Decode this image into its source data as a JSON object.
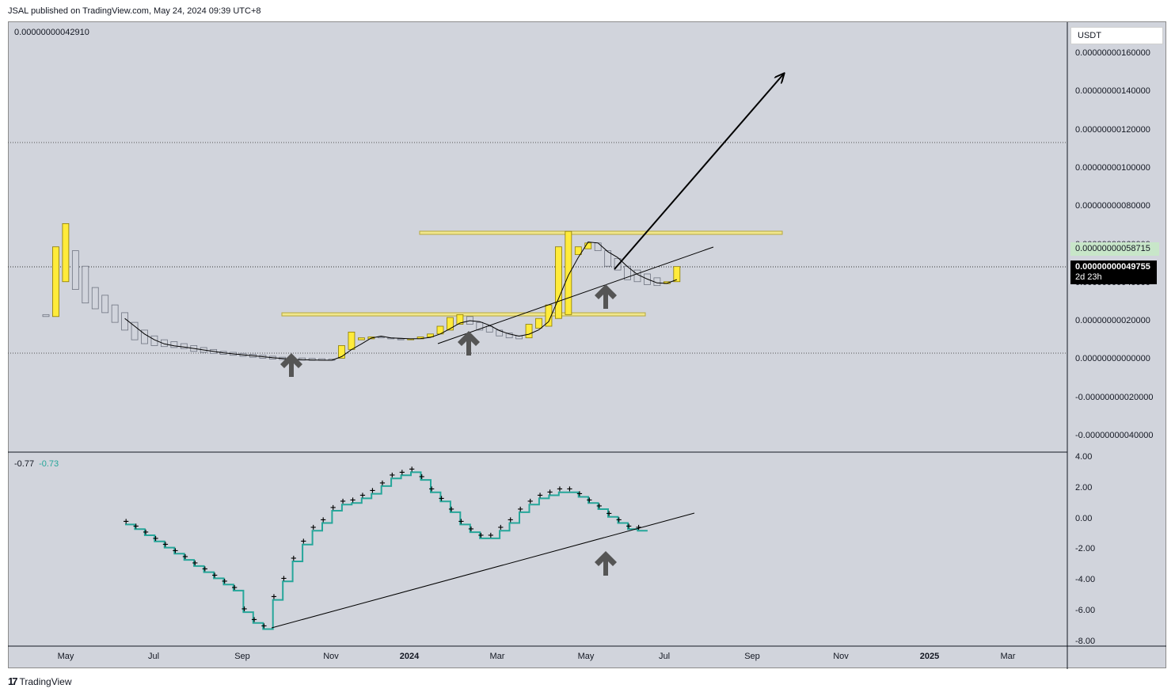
{
  "header": {
    "published": "JSAL published on TradingView.com, May 24, 2024 09:39 UTC+8"
  },
  "chart": {
    "currency": "USDT",
    "price_pane_value": "0.00000000042910",
    "indicator_values": [
      "-0.77",
      "-0.73"
    ],
    "badge_green": "0.00000000058715",
    "badge_current": "0.00000000049755",
    "badge_countdown": "2d 23h",
    "colors": {
      "bg": "#d1d4dc",
      "up": "#ffeb3b",
      "down": "#d1d4dc",
      "teal": "#26a69a",
      "zone": "#f0e68c"
    }
  },
  "footer": {
    "brand": "TradingView"
  },
  "chart_data": [
    {
      "type": "candlestick",
      "title": "",
      "xlabel": "",
      "ylabel": "",
      "currency": "USDT",
      "x_ticks": [
        "May",
        "Jul",
        "Sep",
        "Nov",
        "2024",
        "Mar",
        "May",
        "Jul",
        "Sep",
        "Nov",
        "2025",
        "Mar"
      ],
      "y_ticks": [
        "0.00000000160000",
        "0.00000000140000",
        "0.00000000120000",
        "0.00000000100000",
        "0.00000000080000",
        "0.00000000060000",
        "0.00000000040000",
        "0.00000000020000",
        "0.00000000000000",
        "-0.00000000020000",
        "-0.00000000040000"
      ],
      "ylim": [
        -4.6e-10,
        1.76e-09
      ],
      "series": [
        {
          "name": "",
          "candles": [
            {
              "o": 2.5e-10,
              "h": 2.5e-10,
              "l": 2.4e-10,
              "c": 2.4e-10
            },
            {
              "o": 2.4e-10,
              "h": 6e-10,
              "l": 2.4e-10,
              "c": 6e-10
            },
            {
              "o": 4.2e-10,
              "h": 7.2e-10,
              "l": 4.2e-10,
              "c": 7.2e-10
            },
            {
              "o": 5.8e-10,
              "h": 5.8e-10,
              "l": 3.8e-10,
              "c": 3.8e-10
            },
            {
              "o": 5e-10,
              "h": 5e-10,
              "l": 3.1e-10,
              "c": 3.1e-10
            },
            {
              "o": 3.9e-10,
              "h": 3.9e-10,
              "l": 2.8e-10,
              "c": 2.8e-10
            },
            {
              "o": 3.5e-10,
              "h": 3.5e-10,
              "l": 2.6e-10,
              "c": 2.6e-10
            },
            {
              "o": 3e-10,
              "h": 3e-10,
              "l": 2.1e-10,
              "c": 2.1e-10
            },
            {
              "o": 2.6e-10,
              "h": 2.6e-10,
              "l": 1.7e-10,
              "c": 1.7e-10
            },
            {
              "o": 2.1e-10,
              "h": 2.1e-10,
              "l": 1.2e-10,
              "c": 1.2e-10
            },
            {
              "o": 1.7e-10,
              "h": 1.7e-10,
              "l": 1e-10,
              "c": 1e-10
            },
            {
              "o": 1.4e-10,
              "h": 1.4e-10,
              "l": 9e-11,
              "c": 9e-11
            },
            {
              "o": 1.2e-10,
              "h": 1.2e-10,
              "l": 8.5e-11,
              "c": 8.5e-11
            },
            {
              "o": 1.1e-10,
              "h": 1.1e-10,
              "l": 8e-11,
              "c": 8e-11
            },
            {
              "o": 1e-10,
              "h": 1e-10,
              "l": 7.5e-11,
              "c": 7.5e-11
            },
            {
              "o": 9e-11,
              "h": 9e-11,
              "l": 6e-11,
              "c": 6e-11
            },
            {
              "o": 8e-11,
              "h": 8e-11,
              "l": 5.5e-11,
              "c": 5.5e-11
            },
            {
              "o": 7e-11,
              "h": 7e-11,
              "l": 5e-11,
              "c": 5e-11
            },
            {
              "o": 6e-11,
              "h": 6e-11,
              "l": 4.5e-11,
              "c": 4.5e-11
            },
            {
              "o": 5.5e-11,
              "h": 5.5e-11,
              "l": 4e-11,
              "c": 4e-11
            },
            {
              "o": 5e-11,
              "h": 5e-11,
              "l": 3.5e-11,
              "c": 3.5e-11
            },
            {
              "o": 4.5e-11,
              "h": 4.5e-11,
              "l": 3e-11,
              "c": 3e-11
            },
            {
              "o": 4e-11,
              "h": 4e-11,
              "l": 2.5e-11,
              "c": 2.5e-11
            },
            {
              "o": 3.5e-11,
              "h": 3.5e-11,
              "l": 2e-11,
              "c": 2e-11
            },
            {
              "o": 3e-11,
              "h": 3e-11,
              "l": 1.8e-11,
              "c": 1.8e-11
            },
            {
              "o": 2.8e-11,
              "h": 2.8e-11,
              "l": 1.6e-11,
              "c": 1.6e-11
            },
            {
              "o": 2.6e-11,
              "h": 2.6e-11,
              "l": 1.5e-11,
              "c": 1.5e-11
            },
            {
              "o": 2.4e-11,
              "h": 2.4e-11,
              "l": 1.4e-11,
              "c": 1.4e-11
            },
            {
              "o": 2.2e-11,
              "h": 2.2e-11,
              "l": 1.4e-11,
              "c": 1.4e-11
            },
            {
              "o": 2e-11,
              "h": 2.2e-11,
              "l": 1.4e-11,
              "c": 1.4e-11
            },
            {
              "o": 2.5e-11,
              "h": 9e-11,
              "l": 2.5e-11,
              "c": 9e-11
            },
            {
              "o": 7e-11,
              "h": 1.6e-10,
              "l": 7e-11,
              "c": 1.6e-10
            },
            {
              "o": 1.2e-10,
              "h": 1.3e-10,
              "l": 1.2e-10,
              "c": 1.3e-10
            },
            {
              "o": 1.25e-10,
              "h": 1.35e-10,
              "l": 1.25e-10,
              "c": 1.35e-10
            },
            {
              "o": 1.35e-10,
              "h": 1.4e-10,
              "l": 1.3e-10,
              "c": 1.3e-10
            },
            {
              "o": 1.3e-10,
              "h": 1.4e-10,
              "l": 1.25e-10,
              "c": 1.25e-10
            },
            {
              "o": 1.25e-10,
              "h": 1.3e-10,
              "l": 1.2e-10,
              "c": 1.2e-10
            },
            {
              "o": 1.2e-10,
              "h": 1.3e-10,
              "l": 1.18e-10,
              "c": 1.25e-10
            },
            {
              "o": 1.25e-10,
              "h": 1.35e-10,
              "l": 1.25e-10,
              "c": 1.35e-10
            },
            {
              "o": 1.35e-10,
              "h": 1.5e-10,
              "l": 1.35e-10,
              "c": 1.5e-10
            },
            {
              "o": 1.5e-10,
              "h": 1.9e-10,
              "l": 1.5e-10,
              "c": 1.9e-10
            },
            {
              "o": 1.7e-10,
              "h": 2.35e-10,
              "l": 1.7e-10,
              "c": 2.35e-10
            },
            {
              "o": 2e-10,
              "h": 2.5e-10,
              "l": 2e-10,
              "c": 2.5e-10
            },
            {
              "o": 2.4e-10,
              "h": 2.4e-10,
              "l": 2e-10,
              "c": 2e-10
            },
            {
              "o": 2.1e-10,
              "h": 2.1e-10,
              "l": 1.7e-10,
              "c": 1.7e-10
            },
            {
              "o": 1.9e-10,
              "h": 1.9e-10,
              "l": 1.6e-10,
              "c": 1.6e-10
            },
            {
              "o": 1.7e-10,
              "h": 1.7e-10,
              "l": 1.4e-10,
              "c": 1.4e-10
            },
            {
              "o": 1.55e-10,
              "h": 1.55e-10,
              "l": 1.3e-10,
              "c": 1.3e-10
            },
            {
              "o": 1.4e-10,
              "h": 1.4e-10,
              "l": 1.25e-10,
              "c": 1.25e-10
            },
            {
              "o": 1.3e-10,
              "h": 2e-10,
              "l": 1.25e-10,
              "c": 2e-10
            },
            {
              "o": 1.8e-10,
              "h": 2.3e-10,
              "l": 1.8e-10,
              "c": 2.3e-10
            },
            {
              "o": 1.9e-10,
              "h": 3e-10,
              "l": 1.9e-10,
              "c": 3e-10
            },
            {
              "o": 2.3e-10,
              "h": 6e-10,
              "l": 2.3e-10,
              "c": 6e-10
            },
            {
              "o": 2.5e-10,
              "h": 6.8e-10,
              "l": 2.5e-10,
              "c": 6.8e-10
            },
            {
              "o": 5.6e-10,
              "h": 6e-10,
              "l": 5.6e-10,
              "c": 6e-10
            },
            {
              "o": 5.9e-10,
              "h": 6.2e-10,
              "l": 5.9e-10,
              "c": 6.2e-10
            },
            {
              "o": 6.2e-10,
              "h": 6.2e-10,
              "l": 5.8e-10,
              "c": 5.8e-10
            },
            {
              "o": 5.8e-10,
              "h": 5.8e-10,
              "l": 5e-10,
              "c": 5e-10
            },
            {
              "o": 5.4e-10,
              "h": 5.4e-10,
              "l": 4.8e-10,
              "c": 4.8e-10
            },
            {
              "o": 5e-10,
              "h": 5e-10,
              "l": 4.3e-10,
              "c": 4.3e-10
            },
            {
              "o": 4.8e-10,
              "h": 4.8e-10,
              "l": 4.2e-10,
              "c": 4.2e-10
            },
            {
              "o": 4.6e-10,
              "h": 4.6e-10,
              "l": 4.05e-10,
              "c": 4.05e-10
            },
            {
              "o": 4.4e-10,
              "h": 4.4e-10,
              "l": 4e-10,
              "c": 4e-10
            },
            {
              "o": 4.1e-10,
              "h": 4.3e-10,
              "l": 4e-10,
              "c": 4.2e-10
            },
            {
              "o": 4.2e-10,
              "h": 5e-10,
              "l": 4.1e-10,
              "c": 4.98e-10
            }
          ]
        }
      ],
      "indicator": {
        "name": "",
        "yticks": [
          "4.00",
          "2.00",
          "0.00",
          "-2.00",
          "-4.00",
          "-6.00",
          "-8.00"
        ],
        "ylim": [
          -8,
          4
        ],
        "values": [
          -0.4,
          -0.7,
          -1.1,
          -1.5,
          -1.9,
          -2.3,
          -2.7,
          -3.1,
          -3.5,
          -3.9,
          -4.3,
          -4.7,
          -6.1,
          -6.8,
          -7.2,
          -5.3,
          -4.1,
          -2.8,
          -1.7,
          -0.8,
          -0.3,
          0.5,
          0.9,
          1.0,
          1.3,
          1.6,
          2.1,
          2.6,
          2.8,
          3.0,
          2.5,
          1.7,
          1.1,
          0.4,
          -0.4,
          -0.9,
          -1.3,
          -1.3,
          -0.8,
          -0.3,
          0.4,
          0.9,
          1.3,
          1.5,
          1.7,
          1.7,
          1.4,
          1.0,
          0.6,
          0.1,
          -0.3,
          -0.7,
          -0.8
        ],
        "trend_line": {
          "from": -7.2,
          "to": 0.3
        }
      }
    }
  ]
}
